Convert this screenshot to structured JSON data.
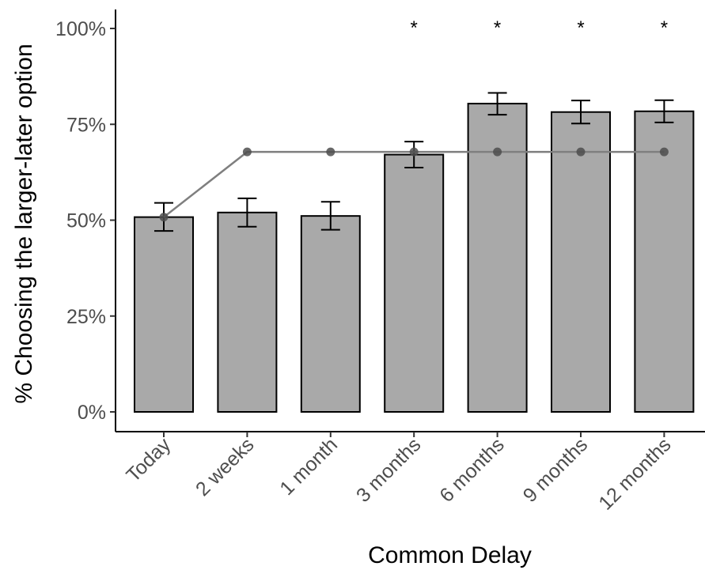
{
  "chart_data": {
    "type": "bar",
    "xlabel": "Common Delay",
    "ylabel": "% Choosing the larger-later option",
    "ylim": [
      0,
      100
    ],
    "yticks": [
      0,
      25,
      50,
      75,
      100
    ],
    "ytick_labels": [
      "0%",
      "25%",
      "50%",
      "75%",
      "100%"
    ],
    "categories": [
      "Today",
      "2 weeks",
      "1 month",
      "3 months",
      "6 months",
      "9 months",
      "12 months"
    ],
    "values": [
      50.8,
      52.0,
      51.1,
      67.1,
      80.4,
      78.2,
      78.4
    ],
    "error_low": [
      47.2,
      48.3,
      47.5,
      63.7,
      77.5,
      75.2,
      75.5
    ],
    "error_high": [
      54.5,
      55.7,
      54.8,
      70.5,
      83.2,
      81.2,
      81.3
    ],
    "reference_line": [
      50.8,
      67.8,
      67.8,
      67.8,
      67.8,
      67.8,
      67.8
    ],
    "significance": [
      "",
      "",
      "",
      "*",
      "*",
      "*",
      "*"
    ],
    "grid": false,
    "colors": {
      "bar_fill": "#a9a9a9",
      "bar_stroke": "#000000",
      "reference_line": "#7f7f7f",
      "reference_point": "#4d4d4d",
      "axis": "#000000"
    }
  }
}
